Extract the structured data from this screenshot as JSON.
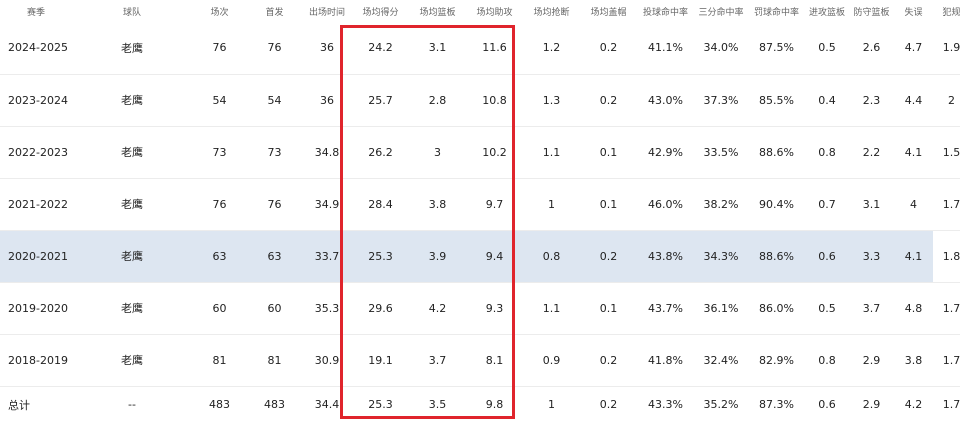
{
  "columns": [
    "赛季",
    "球队",
    "场次",
    "首发",
    "出场时间",
    "场均得分",
    "场均篮板",
    "场均助攻",
    "场均抢断",
    "场均盖帽",
    "投球命中率",
    "三分命中率",
    "罚球命中率",
    "进攻篮板",
    "防守篮板",
    "失误",
    "犯规"
  ],
  "rows": [
    {
      "season": "2024-2025",
      "team": "老鹰",
      "gp": "76",
      "gs": "76",
      "min": "36",
      "pts": "24.2",
      "reb": "3.1",
      "ast": "11.6",
      "stl": "1.2",
      "blk": "0.2",
      "fg": "41.1%",
      "tp": "34.0%",
      "ft": "87.5%",
      "oreb": "0.5",
      "dreb": "2.6",
      "tov": "4.7",
      "pf": "1.9"
    },
    {
      "season": "2023-2024",
      "team": "老鹰",
      "gp": "54",
      "gs": "54",
      "min": "36",
      "pts": "25.7",
      "reb": "2.8",
      "ast": "10.8",
      "stl": "1.3",
      "blk": "0.2",
      "fg": "43.0%",
      "tp": "37.3%",
      "ft": "85.5%",
      "oreb": "0.4",
      "dreb": "2.3",
      "tov": "4.4",
      "pf": "2"
    },
    {
      "season": "2022-2023",
      "team": "老鹰",
      "gp": "73",
      "gs": "73",
      "min": "34.8",
      "pts": "26.2",
      "reb": "3",
      "ast": "10.2",
      "stl": "1.1",
      "blk": "0.1",
      "fg": "42.9%",
      "tp": "33.5%",
      "ft": "88.6%",
      "oreb": "0.8",
      "dreb": "2.2",
      "tov": "4.1",
      "pf": "1.5"
    },
    {
      "season": "2021-2022",
      "team": "老鹰",
      "gp": "76",
      "gs": "76",
      "min": "34.9",
      "pts": "28.4",
      "reb": "3.8",
      "ast": "9.7",
      "stl": "1",
      "blk": "0.1",
      "fg": "46.0%",
      "tp": "38.2%",
      "ft": "90.4%",
      "oreb": "0.7",
      "dreb": "3.1",
      "tov": "4",
      "pf": "1.7"
    },
    {
      "season": "2020-2021",
      "team": "老鹰",
      "gp": "63",
      "gs": "63",
      "min": "33.7",
      "pts": "25.3",
      "reb": "3.9",
      "ast": "9.4",
      "stl": "0.8",
      "blk": "0.2",
      "fg": "43.8%",
      "tp": "34.3%",
      "ft": "88.6%",
      "oreb": "0.6",
      "dreb": "3.3",
      "tov": "4.1",
      "pf": "1.8"
    },
    {
      "season": "2019-2020",
      "team": "老鹰",
      "gp": "60",
      "gs": "60",
      "min": "35.3",
      "pts": "29.6",
      "reb": "4.2",
      "ast": "9.3",
      "stl": "1.1",
      "blk": "0.1",
      "fg": "43.7%",
      "tp": "36.1%",
      "ft": "86.0%",
      "oreb": "0.5",
      "dreb": "3.7",
      "tov": "4.8",
      "pf": "1.7"
    },
    {
      "season": "2018-2019",
      "team": "老鹰",
      "gp": "81",
      "gs": "81",
      "min": "30.9",
      "pts": "19.1",
      "reb": "3.7",
      "ast": "8.1",
      "stl": "0.9",
      "blk": "0.2",
      "fg": "41.8%",
      "tp": "32.4%",
      "ft": "82.9%",
      "oreb": "0.8",
      "dreb": "2.9",
      "tov": "3.8",
      "pf": "1.7"
    }
  ],
  "total": {
    "season": "总计",
    "team": "--",
    "gp": "483",
    "gs": "483",
    "min": "34.4",
    "pts": "25.3",
    "reb": "3.5",
    "ast": "9.8",
    "stl": "1",
    "blk": "0.2",
    "fg": "43.3%",
    "tp": "35.2%",
    "ft": "87.3%",
    "oreb": "0.6",
    "dreb": "2.9",
    "tov": "4.2",
    "pf": "1.7"
  },
  "highlighted_row_index": 4,
  "highlighted_columns": [
    "场均得分",
    "场均篮板",
    "场均助攻"
  ],
  "colors": {
    "highlight_row_bg": "#dde6f1",
    "highlight_box_border": "#e0242c",
    "header_text": "#666666"
  }
}
